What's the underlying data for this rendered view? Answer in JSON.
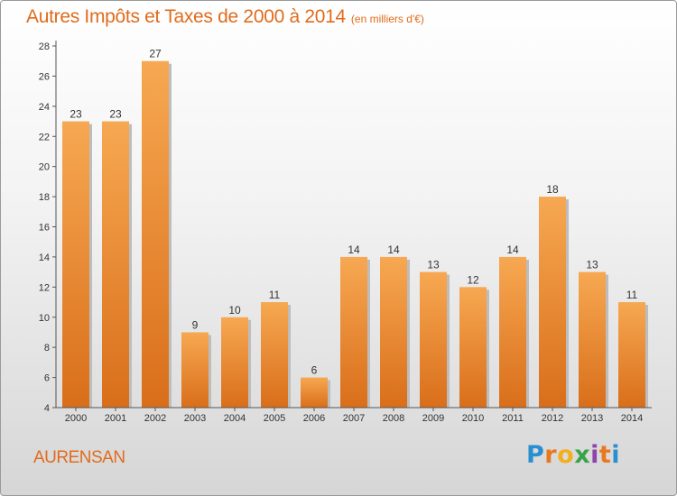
{
  "header": {
    "title": "Autres Impôts et Taxes de 2000 à 2014",
    "unit": "(en milliers d'€)"
  },
  "footer": {
    "commune": "AURENSAN",
    "logo": {
      "letters": [
        "P",
        "r",
        "o",
        "x",
        "i",
        "t",
        "i"
      ],
      "colors": [
        "#2a8fd0",
        "#e8791e",
        "#f2b01e",
        "#3aa34a",
        "#8e44ad",
        "#e8791e",
        "#2a8fd0"
      ]
    }
  },
  "colors": {
    "bar_light": "#f7a852",
    "bar_dark": "#d96e1a",
    "accent": "#e06c1c"
  },
  "chart_data": {
    "type": "bar",
    "title": "Autres Impôts et Taxes de 2000 à 2014",
    "subtitle": "(en milliers d'€)",
    "categories": [
      "2000",
      "2001",
      "2002",
      "2003",
      "2004",
      "2005",
      "2006",
      "2007",
      "2008",
      "2009",
      "2010",
      "2011",
      "2012",
      "2013",
      "2014"
    ],
    "values": [
      23,
      23,
      27,
      9,
      10,
      11,
      6,
      14,
      14,
      13,
      12,
      14,
      18,
      13,
      11
    ],
    "ylim": [
      4,
      28
    ],
    "yticks": [
      4,
      6,
      8,
      10,
      12,
      14,
      16,
      18,
      20,
      22,
      24,
      26,
      28
    ],
    "grid": false,
    "data_labels": true
  }
}
